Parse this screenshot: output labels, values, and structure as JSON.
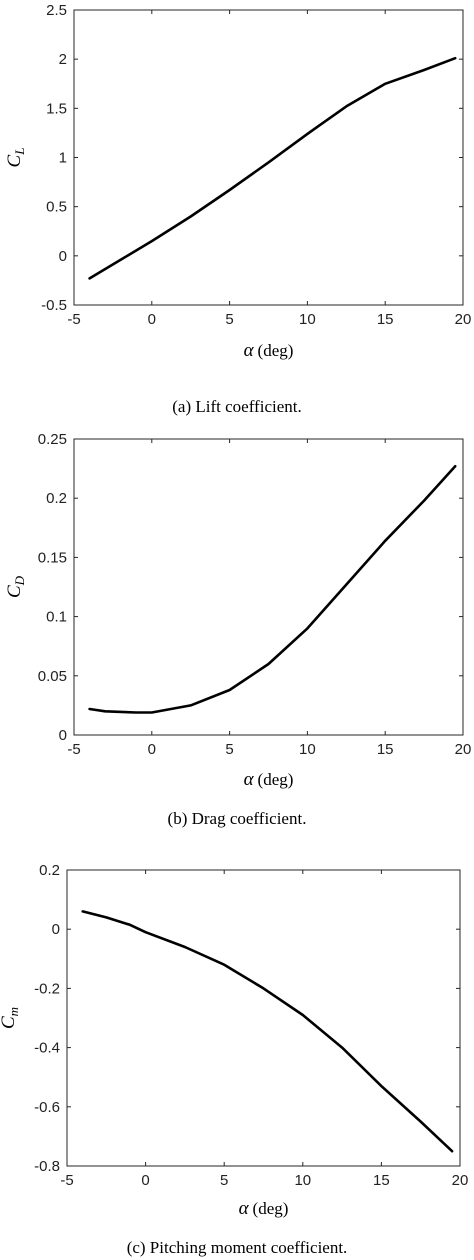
{
  "chart_data": [
    {
      "type": "line",
      "caption": "(a)  Lift coefficient.",
      "xlabel_symbol": "α",
      "xlabel_unit": "(deg)",
      "ylabel_symbol": "C",
      "ylabel_sub": "L",
      "xlim": [
        -5,
        20
      ],
      "ylim": [
        -0.5,
        2.5
      ],
      "xticks": [
        -5,
        0,
        5,
        10,
        15,
        20
      ],
      "yticks": [
        -0.5,
        0,
        0.5,
        1,
        1.5,
        2,
        2.5
      ],
      "xtick_labels": [
        "-5",
        "0",
        "5",
        "10",
        "15",
        "20"
      ],
      "ytick_labels": [
        "-0.5",
        "0",
        "0.5",
        "1",
        "1.5",
        "2",
        "2.5"
      ],
      "grid": false,
      "color": "#000000",
      "x": [
        -4,
        -2,
        0,
        2.5,
        5,
        7.5,
        10,
        12.5,
        15,
        17.5,
        19.5
      ],
      "y": [
        -0.23,
        -0.04,
        0.15,
        0.4,
        0.67,
        0.95,
        1.24,
        1.52,
        1.75,
        1.89,
        2.01
      ]
    },
    {
      "type": "line",
      "caption": "(b)  Drag coefficient.",
      "xlabel_symbol": "α",
      "xlabel_unit": "(deg)",
      "ylabel_symbol": "C",
      "ylabel_sub": "D",
      "xlim": [
        -5,
        20
      ],
      "ylim": [
        0,
        0.25
      ],
      "xticks": [
        -5,
        0,
        5,
        10,
        15,
        20
      ],
      "yticks": [
        0,
        0.05,
        0.1,
        0.15,
        0.2,
        0.25
      ],
      "xtick_labels": [
        "-5",
        "0",
        "5",
        "10",
        "15",
        "20"
      ],
      "ytick_labels": [
        "0",
        "0.05",
        "0.1",
        "0.15",
        "0.2",
        "0.25"
      ],
      "grid": false,
      "color": "#000000",
      "x": [
        -4,
        -3,
        -1,
        0,
        2.5,
        5,
        7.5,
        10,
        12.5,
        15,
        17.5,
        19.5
      ],
      "y": [
        0.022,
        0.02,
        0.019,
        0.019,
        0.025,
        0.038,
        0.06,
        0.09,
        0.127,
        0.164,
        0.198,
        0.227
      ]
    },
    {
      "type": "line",
      "caption": "(c)  Pitching moment coefficient.",
      "xlabel_symbol": "α",
      "xlabel_unit": "(deg)",
      "ylabel_symbol": "C",
      "ylabel_sub": "m",
      "xlim": [
        -5,
        20
      ],
      "ylim": [
        -0.8,
        0.2
      ],
      "xticks": [
        -5,
        0,
        5,
        10,
        15,
        20
      ],
      "yticks": [
        -0.8,
        -0.6,
        -0.4,
        -0.2,
        0,
        0.2
      ],
      "xtick_labels": [
        "-5",
        "0",
        "5",
        "10",
        "15",
        "20"
      ],
      "ytick_labels": [
        "-0.8",
        "-0.6",
        "-0.4",
        "-0.2",
        "0",
        "0.2"
      ],
      "grid": false,
      "color": "#000000",
      "x": [
        -4,
        -2.5,
        -1,
        0,
        2.5,
        5,
        7.5,
        10,
        12.5,
        15,
        17.5,
        19.5
      ],
      "y": [
        0.06,
        0.04,
        0.015,
        -0.01,
        -0.06,
        -0.12,
        -0.2,
        -0.29,
        -0.4,
        -0.53,
        -0.65,
        -0.75
      ]
    }
  ]
}
